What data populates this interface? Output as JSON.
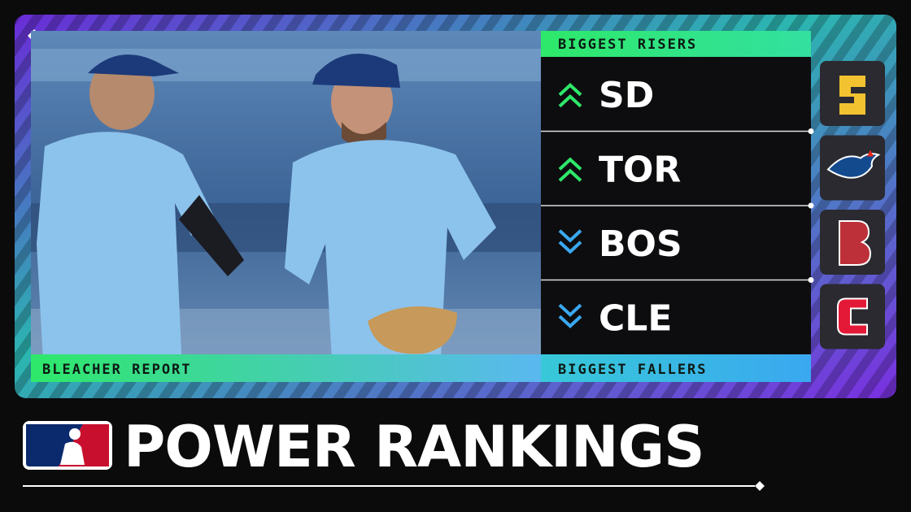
{
  "source": "BLEACHER REPORT",
  "title": "POWER RANKINGS",
  "risers": {
    "label": "BIGGEST RISERS",
    "teams": [
      "SD",
      "TOR"
    ]
  },
  "fallers": {
    "label": "BIGGEST FALLERS",
    "teams": [
      "BOS",
      "CLE"
    ]
  }
}
